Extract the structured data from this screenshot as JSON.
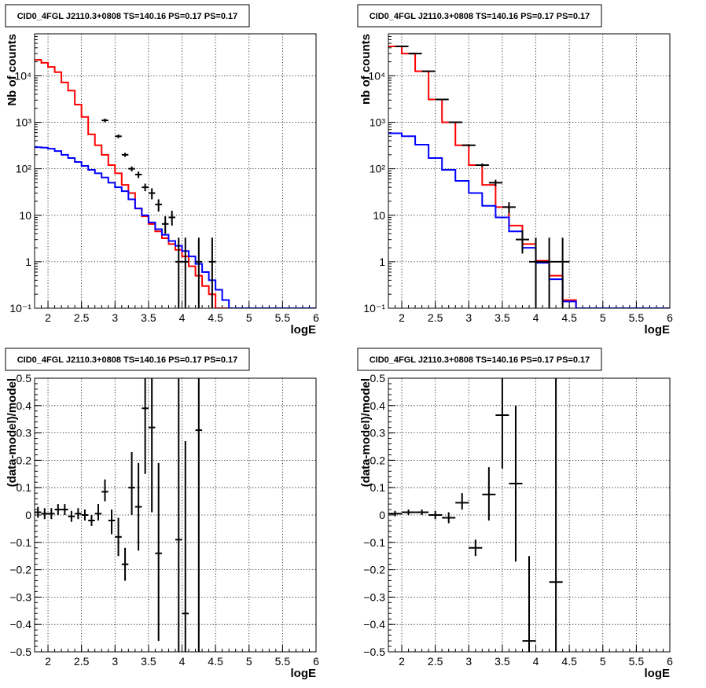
{
  "chart_data": [
    {
      "type": "line",
      "title": "CID0_4FGL J2110.3+0808 TS=140.16 PS=0.17 PS=0.17",
      "xlabel": "logE",
      "ylabel": "Nb of counts",
      "xlim": [
        1.8,
        6
      ],
      "ylim": [
        0.1,
        80000
      ],
      "yscale": "log",
      "grid": true,
      "xticks": [
        "2",
        "2.5",
        "3",
        "3.5",
        "4",
        "4.5",
        "5",
        "5.5",
        "6"
      ],
      "yticks": [
        "10⁻¹",
        "1",
        "10",
        "10²",
        "10³",
        "10⁴"
      ],
      "bin_width": 0.1,
      "series": [
        {
          "color": "#ff0000",
          "bins_start": 1.8,
          "values": [
            22000,
            19000,
            15500,
            12000,
            7200,
            4800,
            2400,
            1300,
            550,
            320,
            200,
            120,
            80,
            45,
            30,
            14,
            9.5,
            6.5,
            4.5,
            3.2,
            2.4,
            1.8,
            1.3,
            0.8,
            0.5,
            0.3,
            0.2,
            0.1,
            0.1,
            0.1,
            0.1,
            0.1,
            0.1,
            0.1,
            0.1,
            0.1,
            0.1,
            0.1,
            0.1,
            0.1,
            0.1,
            0.1
          ]
        },
        {
          "color": "#0000ff",
          "bins_start": 1.8,
          "values": [
            290,
            285,
            270,
            240,
            200,
            170,
            140,
            115,
            95,
            80,
            65,
            50,
            40,
            33,
            22,
            14,
            10,
            7,
            5,
            3.8,
            2.8,
            2.2,
            1.7,
            1.3,
            0.9,
            0.6,
            0.4,
            0.25,
            0.15,
            0.1,
            0.1,
            0.1,
            0.1,
            0.1,
            0.1,
            0.1,
            0.1,
            0.1,
            0.1,
            0.1,
            0.1,
            0.1
          ]
        },
        {
          "color": "#000000",
          "type": "points",
          "x": [
            2.85,
            3.05,
            3.15,
            3.25,
            3.35,
            3.45,
            3.55,
            3.65,
            3.75,
            3.85,
            3.95,
            4.05,
            4.25,
            4.45
          ],
          "y": [
            1100,
            500,
            200,
            100,
            75,
            40,
            30,
            17,
            6.5,
            9,
            1,
            1,
            1,
            1
          ],
          "ylow": [
            1000,
            455,
            180,
            88,
            63,
            33,
            22,
            12,
            4,
            6,
            0.1,
            0.1,
            0.1,
            0.1
          ],
          "yhigh": [
            1200,
            545,
            220,
            112,
            87,
            48,
            38,
            22,
            9.5,
            12.5,
            3.3,
            3.3,
            3.3,
            3.3
          ]
        }
      ]
    },
    {
      "type": "line",
      "title": "CID0_4FGL J2110.3+0808 TS=140.16 PS=0.17 PS=0.17",
      "xlabel": "logE",
      "ylabel": "nb of counts",
      "xlim": [
        1.8,
        6
      ],
      "ylim": [
        0.1,
        80000
      ],
      "yscale": "log",
      "grid": true,
      "xticks": [
        "2",
        "2.5",
        "3",
        "3.5",
        "4",
        "4.5",
        "5",
        "5.5",
        "6"
      ],
      "yticks": [
        "10⁻¹",
        "1",
        "10",
        "10²",
        "10³",
        "10⁴"
      ],
      "bin_width": 0.2,
      "series": [
        {
          "color": "#ff0000",
          "bins_start": 1.8,
          "values": [
            43000,
            30000,
            12500,
            3100,
            1000,
            320,
            120,
            45,
            15,
            6,
            2.4,
            1.05,
            0.5,
            0.15,
            0.1,
            0.1,
            0.1,
            0.1,
            0.1,
            0.1,
            0.1
          ]
        },
        {
          "color": "#0000ff",
          "bins_start": 1.8,
          "values": [
            580,
            500,
            330,
            170,
            95,
            55,
            30,
            16,
            9,
            4.5,
            2.0,
            0.95,
            0.42,
            0.14,
            0.1,
            0.1,
            0.1,
            0.1,
            0.1,
            0.1,
            0.1
          ]
        },
        {
          "color": "#000000",
          "type": "points",
          "x": [
            2.0,
            2.2,
            2.4,
            2.6,
            2.8,
            3.0,
            3.2,
            3.4,
            3.6,
            3.8,
            4.0,
            4.2,
            4.4
          ],
          "y": [
            43000,
            30000,
            12500,
            3100,
            1000,
            320,
            120,
            50,
            15,
            3,
            1,
            1,
            1
          ],
          "ylow": [
            42000,
            29500,
            12300,
            3000,
            970,
            300,
            110,
            42,
            11,
            1.5,
            0.1,
            0.1,
            0.1
          ],
          "yhigh": [
            44000,
            30500,
            12700,
            3200,
            1030,
            340,
            130,
            58,
            19,
            4.8,
            3.3,
            3.3,
            3.3
          ]
        }
      ]
    },
    {
      "type": "scatter",
      "title": "CID0_4FGL J2110.3+0808 TS=140.16 PS=0.17 PS=0.17",
      "xlabel": "logE",
      "ylabel": "(data-model)/model",
      "xlim": [
        1.8,
        6
      ],
      "ylim": [
        -0.5,
        0.5
      ],
      "grid": true,
      "xticks": [
        "2",
        "2.5",
        "3",
        "3.5",
        "4",
        "4.5",
        "5",
        "5.5",
        "6"
      ],
      "yticks": [
        "−0.5",
        "−0.4",
        "−0.3",
        "−0.2",
        "−0.1",
        "0",
        "0.1",
        "0.2",
        "0.3",
        "0.4",
        "0.5"
      ],
      "xerr": 0.05,
      "series": [
        {
          "color": "#000000",
          "x": [
            1.85,
            1.95,
            2.05,
            2.15,
            2.25,
            2.35,
            2.45,
            2.55,
            2.65,
            2.75,
            2.85,
            2.95,
            3.05,
            3.15,
            3.25,
            3.35,
            3.45,
            3.55,
            3.65,
            3.95,
            4.05,
            4.25
          ],
          "y": [
            0.01,
            0.005,
            0.005,
            0.02,
            0.02,
            -0.005,
            0.005,
            0.0,
            -0.02,
            0.005,
            0.085,
            -0.02,
            -0.08,
            -0.18,
            0.1,
            0.03,
            0.39,
            0.32,
            -0.14,
            -0.09,
            -0.36,
            0.31
          ],
          "ylow": [
            -0.01,
            -0.015,
            -0.015,
            0.0,
            0.0,
            -0.025,
            -0.015,
            -0.02,
            -0.04,
            -0.02,
            0.05,
            -0.07,
            -0.15,
            -0.24,
            0.0,
            -0.13,
            0.15,
            0.01,
            -0.46,
            -0.5,
            -0.5,
            -0.5
          ],
          "yhigh": [
            0.03,
            0.025,
            0.025,
            0.04,
            0.04,
            0.015,
            0.025,
            0.02,
            0.0,
            0.04,
            0.13,
            0.02,
            -0.01,
            -0.12,
            0.23,
            0.19,
            0.5,
            0.5,
            0.19,
            0.5,
            0.27,
            0.5
          ]
        }
      ]
    },
    {
      "type": "scatter",
      "title": "CID0_4FGL J2110.3+0808 TS=140.16 PS=0.17 PS=0.17",
      "xlabel": "logE",
      "ylabel": "(data-model)/model",
      "xlim": [
        1.8,
        6
      ],
      "ylim": [
        -0.5,
        0.5
      ],
      "grid": true,
      "xticks": [
        "2",
        "2.5",
        "3",
        "3.5",
        "4",
        "4.5",
        "5",
        "5.5",
        "6"
      ],
      "yticks": [
        "−0.5",
        "−0.4",
        "−0.3",
        "−0.2",
        "−0.1",
        "0",
        "0.1",
        "0.2",
        "0.3",
        "0.4",
        "0.5"
      ],
      "xerr": 0.1,
      "series": [
        {
          "color": "#000000",
          "x": [
            1.9,
            2.1,
            2.3,
            2.5,
            2.7,
            2.9,
            3.1,
            3.3,
            3.5,
            3.7,
            3.9,
            4.3
          ],
          "y": [
            0.005,
            0.01,
            0.01,
            0.0,
            -0.01,
            0.045,
            -0.12,
            0.075,
            0.365,
            0.115,
            -0.46,
            -0.245
          ],
          "ylow": [
            -0.005,
            0.0,
            0.0,
            -0.015,
            -0.03,
            0.02,
            -0.15,
            -0.02,
            0.17,
            -0.17,
            -0.5,
            -0.5
          ],
          "yhigh": [
            0.015,
            0.02,
            0.02,
            0.015,
            0.01,
            0.08,
            -0.09,
            0.175,
            0.5,
            0.4,
            -0.15,
            0.5
          ]
        }
      ]
    }
  ]
}
